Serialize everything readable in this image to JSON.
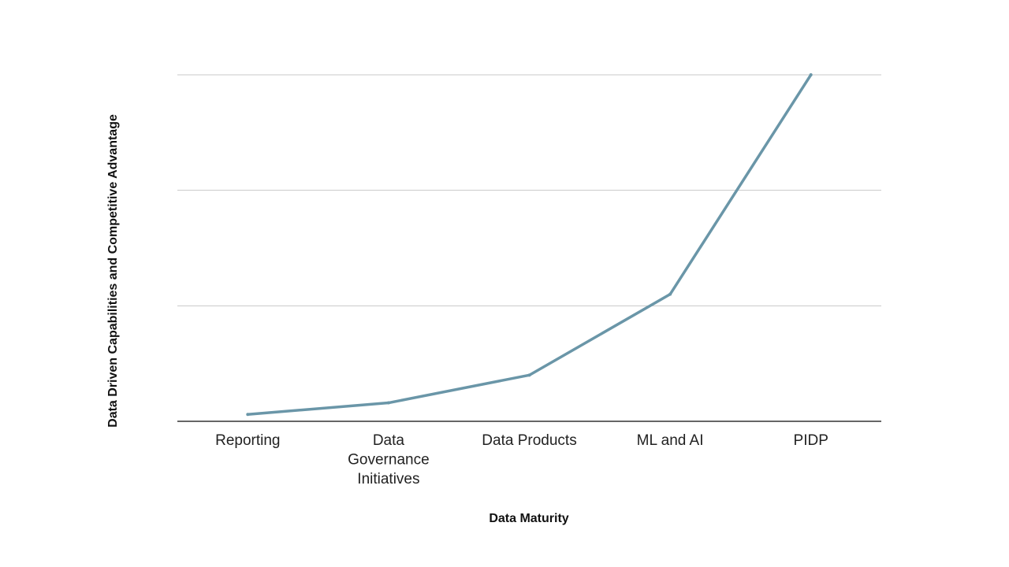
{
  "chart_data": {
    "type": "line",
    "categories": [
      "Reporting",
      "Data Governance Initiatives",
      "Data Products",
      "ML and AI",
      "PIDP"
    ],
    "category_lines": [
      [
        "Reporting"
      ],
      [
        "Data",
        "Governance",
        "Initiatives"
      ],
      [
        "Data Products"
      ],
      [
        "ML and AI"
      ],
      [
        "PIDP"
      ]
    ],
    "series": [
      {
        "values": [
          0.3,
          0.8,
          2.0,
          5.5,
          15.0
        ]
      }
    ],
    "xlabel": "Data Maturity",
    "ylabel": "Data Driven Capabilities and Competitive Advantage",
    "ylim": [
      0,
      15
    ],
    "gridlines": [
      0,
      5,
      10,
      15
    ],
    "y_tick_labels_shown": false,
    "grid": true,
    "legend": "none",
    "colors": {
      "line": "#6a96a8",
      "grid": "#c8c8c8",
      "baseline": "#333333"
    }
  }
}
